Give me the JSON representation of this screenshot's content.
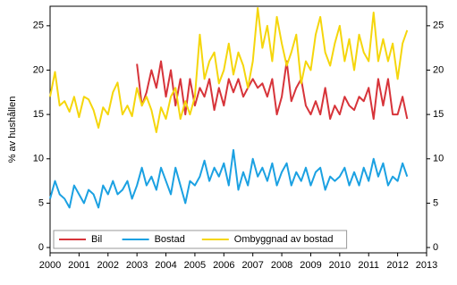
{
  "chart_data": {
    "type": "line",
    "ylabel": "% av hushållen",
    "x": [
      2000,
      2000.17,
      2000.33,
      2000.5,
      2000.67,
      2000.83,
      2001,
      2001.17,
      2001.33,
      2001.5,
      2001.67,
      2001.83,
      2002,
      2002.17,
      2002.33,
      2002.5,
      2002.67,
      2002.83,
      2003,
      2003.17,
      2003.33,
      2003.5,
      2003.67,
      2003.83,
      2004,
      2004.17,
      2004.33,
      2004.5,
      2004.67,
      2004.83,
      2005,
      2005.17,
      2005.33,
      2005.5,
      2005.67,
      2005.83,
      2006,
      2006.17,
      2006.33,
      2006.5,
      2006.67,
      2006.83,
      2007,
      2007.17,
      2007.33,
      2007.5,
      2007.67,
      2007.83,
      2008,
      2008.17,
      2008.33,
      2008.5,
      2008.67,
      2008.83,
      2009,
      2009.17,
      2009.33,
      2009.5,
      2009.67,
      2009.83,
      2010,
      2010.17,
      2010.33,
      2010.5,
      2010.67,
      2010.83,
      2011,
      2011.17,
      2011.33,
      2011.5,
      2011.67,
      2011.83,
      2012,
      2012.17,
      2012.33
    ],
    "series": [
      {
        "name": "Bil",
        "color": "#d7343a",
        "values": [
          null,
          null,
          null,
          null,
          null,
          null,
          null,
          null,
          null,
          null,
          null,
          null,
          null,
          null,
          null,
          null,
          null,
          null,
          20.7,
          16,
          17.5,
          20,
          18,
          21,
          17,
          20,
          16,
          19,
          15,
          19,
          16,
          18,
          17,
          19,
          15.5,
          18,
          16,
          19,
          17.5,
          19,
          17,
          18,
          19,
          18,
          18.5,
          17,
          19,
          15,
          17,
          21,
          16.5,
          18,
          19,
          16,
          15,
          16.5,
          15,
          18,
          14.5,
          16,
          15,
          17,
          16,
          15.5,
          17,
          16.5,
          18,
          14.5,
          19,
          16,
          19,
          15,
          15,
          17,
          14.5
        ]
      },
      {
        "name": "Bostad",
        "color": "#1ba1e2",
        "values": [
          5.5,
          7.5,
          6,
          5.5,
          4.5,
          7,
          6,
          5,
          6.5,
          6,
          4.5,
          7,
          6,
          7.5,
          6,
          6.5,
          7.5,
          5.5,
          7,
          9,
          7,
          8,
          6.5,
          9,
          7.5,
          6,
          9,
          7,
          5,
          7.5,
          7,
          8,
          9.8,
          7.5,
          9,
          8,
          9.5,
          7,
          11,
          6.5,
          8.5,
          7,
          10,
          8,
          9,
          7.5,
          9.5,
          7,
          8.5,
          9.5,
          7,
          8.5,
          7.5,
          9,
          7,
          8.5,
          9,
          6.5,
          8,
          7.5,
          8,
          9,
          7,
          8.5,
          7,
          9,
          7.5,
          10,
          8,
          9.5,
          7,
          8,
          7.5,
          9.5,
          8
        ]
      },
      {
        "name": "Ombyggnad av bostad",
        "color": "#f5d60c",
        "values": [
          17,
          19.8,
          16,
          16.5,
          15.3,
          17,
          14.7,
          17,
          16.7,
          15.5,
          13.5,
          15.8,
          15,
          17.5,
          18.6,
          15,
          16,
          14.8,
          18,
          16,
          17,
          15.5,
          13,
          15.8,
          14.5,
          17,
          18,
          14.5,
          16.5,
          15,
          17,
          24,
          19,
          21,
          22,
          18.5,
          20,
          23,
          19.5,
          22,
          20.5,
          18,
          21,
          27,
          22.5,
          25,
          21,
          26,
          23,
          20.5,
          22,
          24,
          18.5,
          21,
          20,
          24,
          26,
          22,
          20.5,
          23,
          25,
          21,
          23.5,
          20,
          24,
          22,
          21,
          26.5,
          21,
          23.5,
          21,
          23,
          19,
          23,
          24.5
        ]
      }
    ],
    "xlim": [
      2000,
      2013
    ],
    "xticks": [
      2000,
      2001,
      2002,
      2003,
      2004,
      2005,
      2006,
      2007,
      2008,
      2009,
      2010,
      2011,
      2012,
      2013
    ],
    "ylim": [
      -0.6,
      27.2
    ],
    "yticks": [
      0,
      5,
      10,
      15,
      20,
      25
    ],
    "y2lim": [
      -0.6,
      27.2
    ],
    "y2ticks": [
      0,
      5,
      10,
      15,
      20,
      25
    ],
    "grid": false,
    "legend": "lower-left"
  }
}
